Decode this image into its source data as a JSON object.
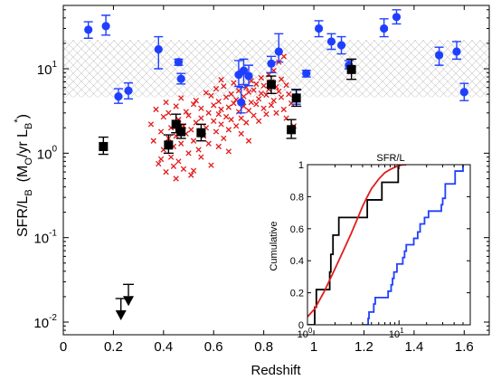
{
  "chart_data": [
    {
      "type": "scatter",
      "title": "",
      "xlabel": "Redshift",
      "ylabel_main": "SFR/L",
      "ylabel_sub": "B",
      "ylabel_units_open": "(M",
      "ylabel_units_sub0": "O",
      "ylabel_units_mid": "/yr L",
      "ylabel_units_subB": "B",
      "ylabel_units_sup": "*",
      "ylabel_units_close": ")",
      "xlim": [
        0,
        1.7
      ],
      "ylim_log10": [
        -2.15,
        1.75
      ],
      "yscale": "log",
      "x_ticks": [
        0,
        0.2,
        0.4,
        0.6,
        0.8,
        1,
        1.2,
        1.4,
        1.6
      ],
      "x_tick_labels": [
        "0",
        "0.2",
        "0.4",
        "0.6",
        "0.8",
        "1",
        "1.2",
        "1.4",
        "1.6"
      ],
      "y_ticks": [
        {
          "base": "10",
          "exp": "-2",
          "value": 0.01
        },
        {
          "base": "10",
          "exp": "-1",
          "value": 0.1
        },
        {
          "base": "10",
          "exp": "0",
          "value": 1
        },
        {
          "base": "10",
          "exp": "1",
          "value": 10
        }
      ],
      "band": {
        "x": [
          0,
          1.7
        ],
        "y": [
          4.6,
          22
        ]
      },
      "series": [
        {
          "key": "blue",
          "color": "#1f3fff",
          "marker": "circle",
          "points": [
            {
              "x": 0.1,
              "y": 29,
              "lo": 23,
              "hi": 36
            },
            {
              "x": 0.17,
              "y": 32,
              "lo": 25,
              "hi": 43
            },
            {
              "x": 0.22,
              "y": 4.7,
              "lo": 3.9,
              "hi": 5.8
            },
            {
              "x": 0.26,
              "y": 5.5,
              "lo": 4.4,
              "hi": 6.8
            },
            {
              "x": 0.38,
              "y": 17,
              "lo": 10,
              "hi": 24
            },
            {
              "x": 0.46,
              "y": 12,
              "lo": 11,
              "hi": 13
            },
            {
              "x": 0.47,
              "y": 7.6,
              "lo": 6.6,
              "hi": 8.8
            },
            {
              "x": 0.7,
              "y": 8.5,
              "lo": 6.2,
              "hi": 12.5
            },
            {
              "x": 0.71,
              "y": 4.0,
              "lo": 3.0,
              "hi": 6.0
            },
            {
              "x": 0.72,
              "y": 9.5,
              "lo": 6.5,
              "hi": 13
            },
            {
              "x": 0.74,
              "y": 8.2,
              "lo": 6.3,
              "hi": 11
            },
            {
              "x": 0.83,
              "y": 11.5,
              "lo": 9.0,
              "hi": 14
            },
            {
              "x": 0.86,
              "y": 16,
              "lo": 12,
              "hi": 26
            },
            {
              "x": 0.93,
              "y": 4.6,
              "lo": 3.8,
              "hi": 5.6
            },
            {
              "x": 0.97,
              "y": 8.8,
              "lo": 8.0,
              "hi": 9.6
            },
            {
              "x": 1.02,
              "y": 30,
              "lo": 24,
              "hi": 37
            },
            {
              "x": 1.07,
              "y": 21,
              "lo": 17,
              "hi": 26
            },
            {
              "x": 1.11,
              "y": 19,
              "lo": 15,
              "hi": 24
            },
            {
              "x": 1.14,
              "y": 11,
              "lo": 10,
              "hi": 12.5
            },
            {
              "x": 1.28,
              "y": 30,
              "lo": 24,
              "hi": 39
            },
            {
              "x": 1.33,
              "y": 41,
              "lo": 34,
              "hi": 50
            },
            {
              "x": 1.5,
              "y": 14.5,
              "lo": 11,
              "hi": 18
            },
            {
              "x": 1.57,
              "y": 16,
              "lo": 13,
              "hi": 21
            },
            {
              "x": 1.6,
              "y": 5.3,
              "lo": 4.2,
              "hi": 6.7
            }
          ]
        },
        {
          "key": "black",
          "color": "#000000",
          "marker": "square",
          "points": [
            {
              "x": 0.16,
              "y": 1.2,
              "lo": 0.97,
              "hi": 1.55
            },
            {
              "x": 0.42,
              "y": 1.25,
              "lo": 1.0,
              "hi": 1.65
            },
            {
              "x": 0.45,
              "y": 2.2,
              "lo": 1.75,
              "hi": 2.9
            },
            {
              "x": 0.47,
              "y": 1.8,
              "lo": 1.5,
              "hi": 2.2
            },
            {
              "x": 0.55,
              "y": 1.75,
              "lo": 1.4,
              "hi": 2.2
            },
            {
              "x": 0.83,
              "y": 6.5,
              "lo": 5.1,
              "hi": 8.2
            },
            {
              "x": 0.91,
              "y": 1.9,
              "lo": 1.5,
              "hi": 2.5
            },
            {
              "x": 0.93,
              "y": 4.5,
              "lo": 3.6,
              "hi": 5.7
            },
            {
              "x": 1.15,
              "y": 9.8,
              "lo": 7.5,
              "hi": 13
            }
          ]
        },
        {
          "key": "upper_limits",
          "color": "#000000",
          "marker": "down-triangle",
          "points": [
            {
              "x": 0.23,
              "y": 0.019
            },
            {
              "x": 0.26,
              "y": 0.028
            }
          ]
        },
        {
          "key": "red",
          "color": "#e41a1c",
          "marker": "x",
          "points": [
            {
              "x": 0.35,
              "y": 2.2
            },
            {
              "x": 0.36,
              "y": 1.4
            },
            {
              "x": 0.37,
              "y": 3.3
            },
            {
              "x": 0.38,
              "y": 0.75
            },
            {
              "x": 0.39,
              "y": 1.8
            },
            {
              "x": 0.4,
              "y": 2.7
            },
            {
              "x": 0.4,
              "y": 1.1
            },
            {
              "x": 0.41,
              "y": 4.0
            },
            {
              "x": 0.41,
              "y": 0.6
            },
            {
              "x": 0.42,
              "y": 1.5
            },
            {
              "x": 0.42,
              "y": 3.0
            },
            {
              "x": 0.43,
              "y": 0.9
            },
            {
              "x": 0.43,
              "y": 2.0
            },
            {
              "x": 0.44,
              "y": 1.2
            },
            {
              "x": 0.44,
              "y": 0.7
            },
            {
              "x": 0.45,
              "y": 3.6
            },
            {
              "x": 0.45,
              "y": 1.6
            },
            {
              "x": 0.46,
              "y": 2.5
            },
            {
              "x": 0.46,
              "y": 0.8
            },
            {
              "x": 0.47,
              "y": 1.3
            },
            {
              "x": 0.47,
              "y": 4.5
            },
            {
              "x": 0.48,
              "y": 2.1
            },
            {
              "x": 0.48,
              "y": 0.65
            },
            {
              "x": 0.49,
              "y": 1.7
            },
            {
              "x": 0.49,
              "y": 3.1
            },
            {
              "x": 0.5,
              "y": 1.0
            },
            {
              "x": 0.5,
              "y": 2.8
            },
            {
              "x": 0.51,
              "y": 1.9
            },
            {
              "x": 0.51,
              "y": 0.55
            },
            {
              "x": 0.52,
              "y": 3.8
            },
            {
              "x": 0.52,
              "y": 1.4
            },
            {
              "x": 0.53,
              "y": 2.3
            },
            {
              "x": 0.53,
              "y": 4.2
            },
            {
              "x": 0.54,
              "y": 1.1
            },
            {
              "x": 0.55,
              "y": 2.6
            },
            {
              "x": 0.55,
              "y": 3.4
            },
            {
              "x": 0.56,
              "y": 1.6
            },
            {
              "x": 0.57,
              "y": 5.2
            },
            {
              "x": 0.57,
              "y": 2.0
            },
            {
              "x": 0.58,
              "y": 3.0
            },
            {
              "x": 0.58,
              "y": 1.3
            },
            {
              "x": 0.59,
              "y": 4.8
            },
            {
              "x": 0.6,
              "y": 2.4
            },
            {
              "x": 0.6,
              "y": 3.7
            },
            {
              "x": 0.61,
              "y": 1.8
            },
            {
              "x": 0.61,
              "y": 5.8
            },
            {
              "x": 0.62,
              "y": 2.9
            },
            {
              "x": 0.62,
              "y": 4.1
            },
            {
              "x": 0.63,
              "y": 2.2
            },
            {
              "x": 0.63,
              "y": 3.3
            },
            {
              "x": 0.64,
              "y": 1.5
            },
            {
              "x": 0.64,
              "y": 6.2
            },
            {
              "x": 0.65,
              "y": 2.7
            },
            {
              "x": 0.65,
              "y": 4.6
            },
            {
              "x": 0.66,
              "y": 3.5
            },
            {
              "x": 0.66,
              "y": 1.9
            },
            {
              "x": 0.67,
              "y": 5.0
            },
            {
              "x": 0.67,
              "y": 2.5
            },
            {
              "x": 0.68,
              "y": 3.9
            },
            {
              "x": 0.68,
              "y": 6.8
            },
            {
              "x": 0.69,
              "y": 2.1
            },
            {
              "x": 0.69,
              "y": 4.3
            },
            {
              "x": 0.7,
              "y": 3.1
            },
            {
              "x": 0.7,
              "y": 5.5
            },
            {
              "x": 0.71,
              "y": 2.6
            },
            {
              "x": 0.71,
              "y": 1.7
            },
            {
              "x": 0.72,
              "y": 4.7
            },
            {
              "x": 0.72,
              "y": 3.6
            },
            {
              "x": 0.73,
              "y": 6.0
            },
            {
              "x": 0.73,
              "y": 2.3
            },
            {
              "x": 0.74,
              "y": 5.3
            },
            {
              "x": 0.74,
              "y": 3.2
            },
            {
              "x": 0.75,
              "y": 4.0
            },
            {
              "x": 0.75,
              "y": 7.2
            },
            {
              "x": 0.76,
              "y": 2.8
            },
            {
              "x": 0.76,
              "y": 5.6
            },
            {
              "x": 0.77,
              "y": 3.8
            },
            {
              "x": 0.77,
              "y": 6.6
            },
            {
              "x": 0.78,
              "y": 4.4
            },
            {
              "x": 0.78,
              "y": 2.4
            },
            {
              "x": 0.79,
              "y": 5.1
            },
            {
              "x": 0.79,
              "y": 7.8
            },
            {
              "x": 0.8,
              "y": 3.4
            },
            {
              "x": 0.8,
              "y": 6.3
            },
            {
              "x": 0.81,
              "y": 4.9
            },
            {
              "x": 0.81,
              "y": 2.9
            },
            {
              "x": 0.82,
              "y": 8.5
            },
            {
              "x": 0.82,
              "y": 5.7
            },
            {
              "x": 0.83,
              "y": 3.7
            },
            {
              "x": 0.83,
              "y": 7.0
            },
            {
              "x": 0.84,
              "y": 4.2
            },
            {
              "x": 0.84,
              "y": 9.5
            },
            {
              "x": 0.85,
              "y": 6.1
            },
            {
              "x": 0.85,
              "y": 3.0
            },
            {
              "x": 0.86,
              "y": 5.4
            },
            {
              "x": 0.86,
              "y": 12.0
            },
            {
              "x": 0.87,
              "y": 4.6
            },
            {
              "x": 0.87,
              "y": 7.5
            },
            {
              "x": 0.88,
              "y": 3.3
            },
            {
              "x": 0.88,
              "y": 14.0
            },
            {
              "x": 0.89,
              "y": 6.4
            },
            {
              "x": 0.89,
              "y": 2.6
            },
            {
              "x": 0.9,
              "y": 5.0
            },
            {
              "x": 0.91,
              "y": 3.9
            },
            {
              "x": 0.92,
              "y": 2.1
            },
            {
              "x": 0.74,
              "y": 1.4
            },
            {
              "x": 0.62,
              "y": 1.2
            },
            {
              "x": 0.55,
              "y": 0.9
            },
            {
              "x": 0.45,
              "y": 0.5
            },
            {
              "x": 0.39,
              "y": 0.85
            },
            {
              "x": 0.59,
              "y": 0.72
            },
            {
              "x": 0.52,
              "y": 0.62
            },
            {
              "x": 0.66,
              "y": 1.05
            },
            {
              "x": 0.71,
              "y": 9.0
            },
            {
              "x": 0.63,
              "y": 7.4
            }
          ]
        }
      ]
    },
    {
      "type": "line",
      "title": "SFR/L",
      "xlabel": "",
      "ylabel": "Cumulative",
      "xscale": "log",
      "xlim": [
        1,
        60
      ],
      "ylim": [
        0,
        1
      ],
      "x_ticks": [
        {
          "base": "10",
          "exp": "0",
          "value": 1
        },
        {
          "base": "10",
          "exp": "1",
          "value": 10
        }
      ],
      "y_ticks": [
        0,
        0.2,
        0.4,
        0.6,
        0.8,
        1
      ],
      "y_tick_labels": [
        "0",
        "0.2",
        "0.4",
        "0.6",
        "0.8",
        "1"
      ],
      "series": [
        {
          "key": "black",
          "color": "#000000",
          "step": true,
          "x": [
            1.0,
            1.2,
            1.25,
            1.75,
            1.8,
            1.9,
            2.2,
            4.5,
            6.5,
            9.8,
            12
          ],
          "y": [
            0,
            0.11,
            0.22,
            0.33,
            0.44,
            0.56,
            0.67,
            0.78,
            0.89,
            1.0,
            1.0
          ]
        },
        {
          "key": "red",
          "color": "#e41a1c",
          "step": false,
          "x": [
            1.0,
            1.2,
            1.5,
            2.0,
            2.5,
            3.0,
            3.5,
            4.0,
            4.5,
            5.0,
            6.0,
            7.0,
            8.0,
            9.5,
            11,
            12
          ],
          "y": [
            0.05,
            0.1,
            0.2,
            0.35,
            0.47,
            0.57,
            0.66,
            0.74,
            0.8,
            0.85,
            0.91,
            0.95,
            0.97,
            0.99,
            1.0,
            1.0
          ]
        },
        {
          "key": "blue",
          "color": "#1f3fff",
          "step": true,
          "x": [
            4.0,
            4.6,
            4.7,
            5.3,
            5.5,
            7.6,
            8.2,
            8.5,
            8.8,
            9.5,
            11,
            11.5,
            12,
            14.5,
            16,
            17,
            19,
            21,
            29,
            30,
            32,
            41,
            50
          ],
          "y": [
            0,
            0.04,
            0.08,
            0.13,
            0.17,
            0.21,
            0.25,
            0.29,
            0.33,
            0.38,
            0.42,
            0.46,
            0.5,
            0.54,
            0.58,
            0.63,
            0.67,
            0.71,
            0.75,
            0.79,
            0.88,
            0.96,
            1.0
          ]
        }
      ]
    }
  ]
}
